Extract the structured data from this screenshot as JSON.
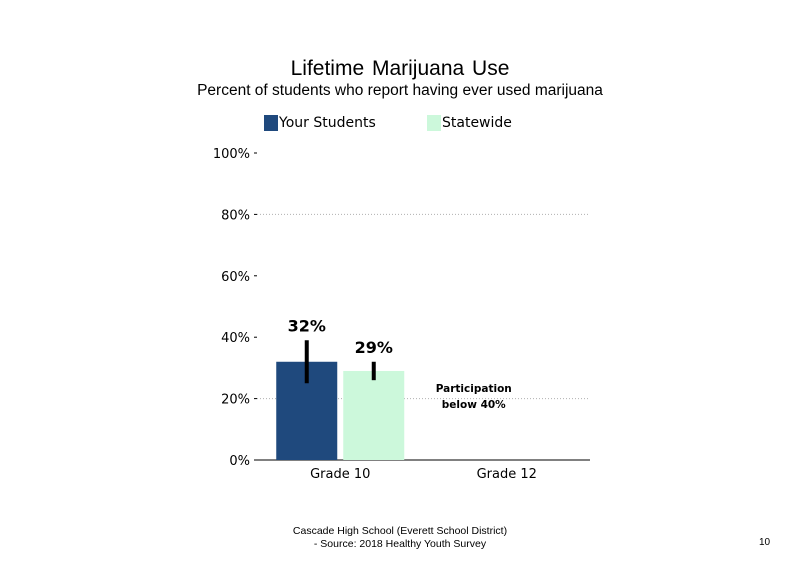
{
  "chart_data": {
    "type": "bar",
    "title": "Lifetime Marijuana Use",
    "subtitle": "Percent of students who report having ever used marijuana",
    "categories": [
      "Grade 10",
      "Grade 12"
    ],
    "series": [
      {
        "name": "Your Students",
        "color": "#1f497d",
        "values": [
          32,
          null
        ],
        "error_low": [
          25,
          null
        ],
        "error_high": [
          39,
          null
        ],
        "data_labels": [
          "32%",
          ""
        ]
      },
      {
        "name": "Statewide",
        "color": "#ccf8db",
        "values": [
          29,
          null
        ],
        "error_low": [
          26,
          null
        ],
        "error_high": [
          32,
          null
        ],
        "data_labels": [
          "29%",
          ""
        ]
      }
    ],
    "ylim": [
      0,
      100
    ],
    "y_ticks": [
      0,
      20,
      40,
      60,
      80,
      100
    ],
    "y_tick_labels": [
      "0%",
      "20%",
      "40%",
      "60%",
      "80%",
      "100%"
    ],
    "grid": "dotted horizontal at 20% and 80%",
    "legend_position": "top",
    "annotation": {
      "category": "Grade 12",
      "lines": [
        "Participation",
        "below 40%"
      ]
    }
  },
  "footer": {
    "line1": "Cascade High School (Everett School District)",
    "line2": "- Source: 2018 Healthy  Youth Survey"
  },
  "page_number": "10"
}
